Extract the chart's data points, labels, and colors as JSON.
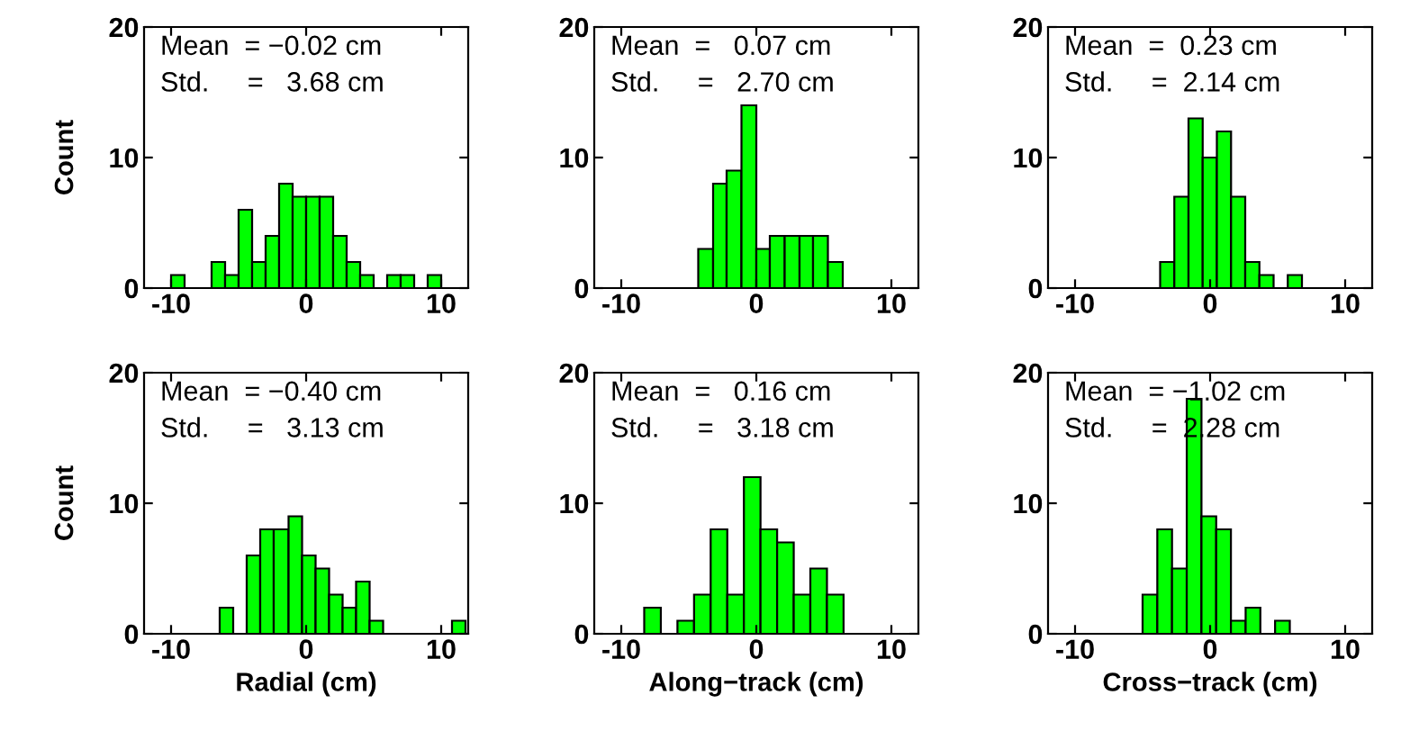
{
  "chart_data": [
    {
      "type": "histogram",
      "ylabel": "Count",
      "annotations": [
        "Mean  = −0.02 cm",
        "Std.     =   3.68 cm"
      ],
      "color": "#00ff00",
      "xlim": [
        -12,
        12
      ],
      "xticks": [
        -10,
        0,
        10
      ],
      "ylim": [
        0,
        20
      ],
      "yticks": [
        0,
        10,
        20
      ],
      "grid": false,
      "bins": [
        -10,
        -9,
        -7,
        -6,
        -5,
        -4,
        -3,
        -2,
        -1,
        0,
        1,
        2,
        3,
        4,
        5,
        6,
        7,
        8,
        9,
        10
      ],
      "values": [
        1,
        0,
        2,
        1,
        6,
        2,
        4,
        8,
        7,
        7,
        7,
        4,
        2,
        1,
        0,
        1,
        1,
        0,
        1
      ]
    },
    {
      "type": "histogram",
      "annotations": [
        "Mean  =   0.07 cm",
        "Std.     =   2.70 cm"
      ],
      "color": "#00ff00",
      "xlim": [
        -12,
        12
      ],
      "xticks": [
        -10,
        0,
        10
      ],
      "ylim": [
        0,
        20
      ],
      "yticks": [
        0,
        10,
        20
      ],
      "grid": false,
      "bins": [
        -4.3,
        -3.2,
        -2.2,
        -1.1,
        0.0,
        1.0,
        2.1,
        3.2,
        4.2,
        5.3,
        6.4
      ],
      "values": [
        3,
        8,
        9,
        14,
        3,
        4,
        4,
        4,
        4,
        2
      ]
    },
    {
      "type": "histogram",
      "annotations": [
        "Mean  =  0.23 cm",
        "Std.     =  2.14 cm"
      ],
      "color": "#00ff00",
      "xlim": [
        -12,
        12
      ],
      "xticks": [
        -10,
        0,
        10
      ],
      "ylim": [
        0,
        20
      ],
      "yticks": [
        0,
        10,
        20
      ],
      "grid": false,
      "bins": [
        -3.7,
        -2.65,
        -1.6,
        -0.55,
        0.5,
        1.55,
        2.6,
        3.65,
        4.7,
        5.75,
        6.8
      ],
      "values": [
        2,
        7,
        13,
        10,
        12,
        7,
        2,
        1,
        0,
        1
      ]
    },
    {
      "type": "histogram",
      "ylabel": "Count",
      "xlabel": "Radial (cm)",
      "annotations": [
        "Mean  = −0.40 cm",
        "Std.     =   3.13 cm"
      ],
      "color": "#00ff00",
      "xlim": [
        -12,
        12
      ],
      "xticks": [
        -10,
        0,
        10
      ],
      "ylim": [
        0,
        20
      ],
      "yticks": [
        0,
        10,
        20
      ],
      "grid": false,
      "bins": [
        -6.4,
        -5.4,
        -4.4,
        -3.4,
        -2.4,
        -1.3,
        -0.3,
        0.7,
        1.7,
        2.7,
        3.7,
        4.7,
        5.7,
        10.8,
        11.8
      ],
      "values": [
        2,
        0,
        6,
        8,
        8,
        9,
        6,
        5,
        3,
        2,
        4,
        1,
        0,
        1
      ]
    },
    {
      "type": "histogram",
      "xlabel": "Along−track (cm)",
      "annotations": [
        "Mean  =   0.16 cm",
        "Std.     =   3.18 cm"
      ],
      "color": "#00ff00",
      "xlim": [
        -12,
        12
      ],
      "xticks": [
        -10,
        0,
        10
      ],
      "ylim": [
        0,
        20
      ],
      "yticks": [
        0,
        10,
        20
      ],
      "grid": false,
      "bins": [
        -8.3,
        -7.07,
        -5.84,
        -4.61,
        -3.38,
        -2.15,
        -0.92,
        0.31,
        1.54,
        2.77,
        4.0,
        5.23,
        6.46
      ],
      "values": [
        2,
        0,
        1,
        3,
        8,
        3,
        12,
        8,
        7,
        3,
        5,
        3
      ]
    },
    {
      "type": "histogram",
      "xlabel": "Cross−track (cm)",
      "annotations": [
        "Mean  = −1.02 cm",
        "Std.     =  2.28 cm"
      ],
      "color": "#00ff00",
      "xlim": [
        -12,
        12
      ],
      "xticks": [
        -10,
        0,
        10
      ],
      "ylim": [
        0,
        20
      ],
      "yticks": [
        0,
        10,
        20
      ],
      "grid": false,
      "bins": [
        -5.0,
        -3.91,
        -2.82,
        -1.73,
        -0.64,
        0.45,
        1.54,
        2.63,
        3.72,
        4.81,
        5.9
      ],
      "values": [
        3,
        8,
        5,
        18,
        9,
        8,
        1,
        2,
        0,
        1
      ]
    }
  ]
}
